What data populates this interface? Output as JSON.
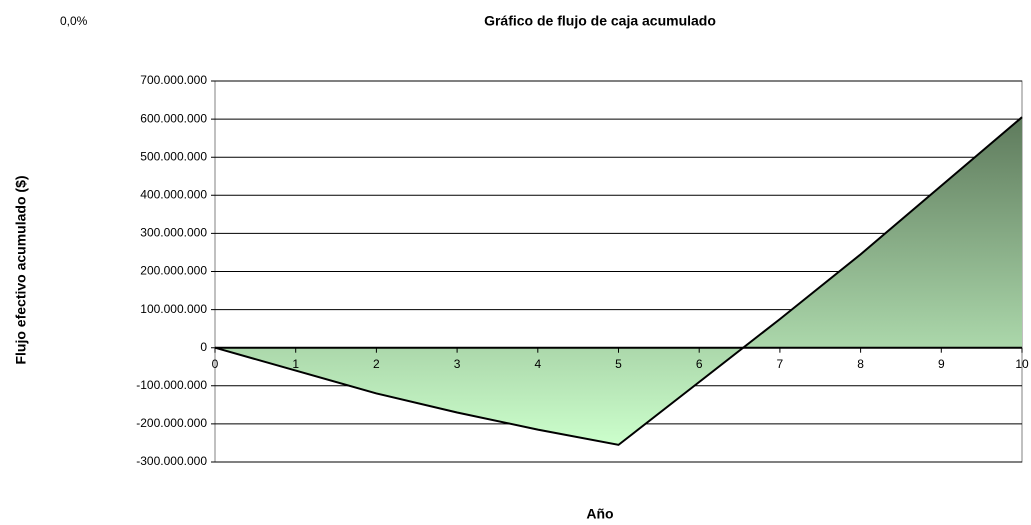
{
  "corner_note": "0,0%",
  "chart_data": {
    "type": "area",
    "title": "Gráfico de flujo de caja acumulado",
    "x_label": "Año",
    "y_label": "Flujo efectivo acumulado ($)",
    "x": [
      0,
      1,
      2,
      3,
      4,
      5,
      6,
      7,
      8,
      9,
      10
    ],
    "values": [
      0,
      -60000000,
      -120000000,
      -170000000,
      -215000000,
      -255000000,
      -90000000,
      75000000,
      245000000,
      425000000,
      605000000
    ],
    "gradient": [
      "#5e7a5c",
      "#ccffcc"
    ],
    "line_color": "#000000",
    "xlim": [
      0,
      10
    ],
    "xticks": [
      0,
      1,
      2,
      3,
      4,
      5,
      6,
      7,
      8,
      9,
      10
    ],
    "ylim": [
      -300000000,
      700000000
    ],
    "yticks": [
      {
        "value": -300000000,
        "label": "-300.000.000"
      },
      {
        "value": -200000000,
        "label": "-200.000.000"
      },
      {
        "value": -100000000,
        "label": "-100.000.000"
      },
      0,
      {
        "value": 100000000,
        "label": "100.000.000"
      },
      {
        "value": 200000000,
        "label": "200.000.000"
      },
      {
        "value": 300000000,
        "label": "300.000.000"
      },
      {
        "value": 400000000,
        "label": "400.000.000"
      },
      {
        "value": 500000000,
        "label": "500.000.000"
      },
      {
        "value": 600000000,
        "label": "600.000.000"
      },
      {
        "value": 700000000,
        "label": "700.000.000"
      }
    ],
    "grid": true
  }
}
